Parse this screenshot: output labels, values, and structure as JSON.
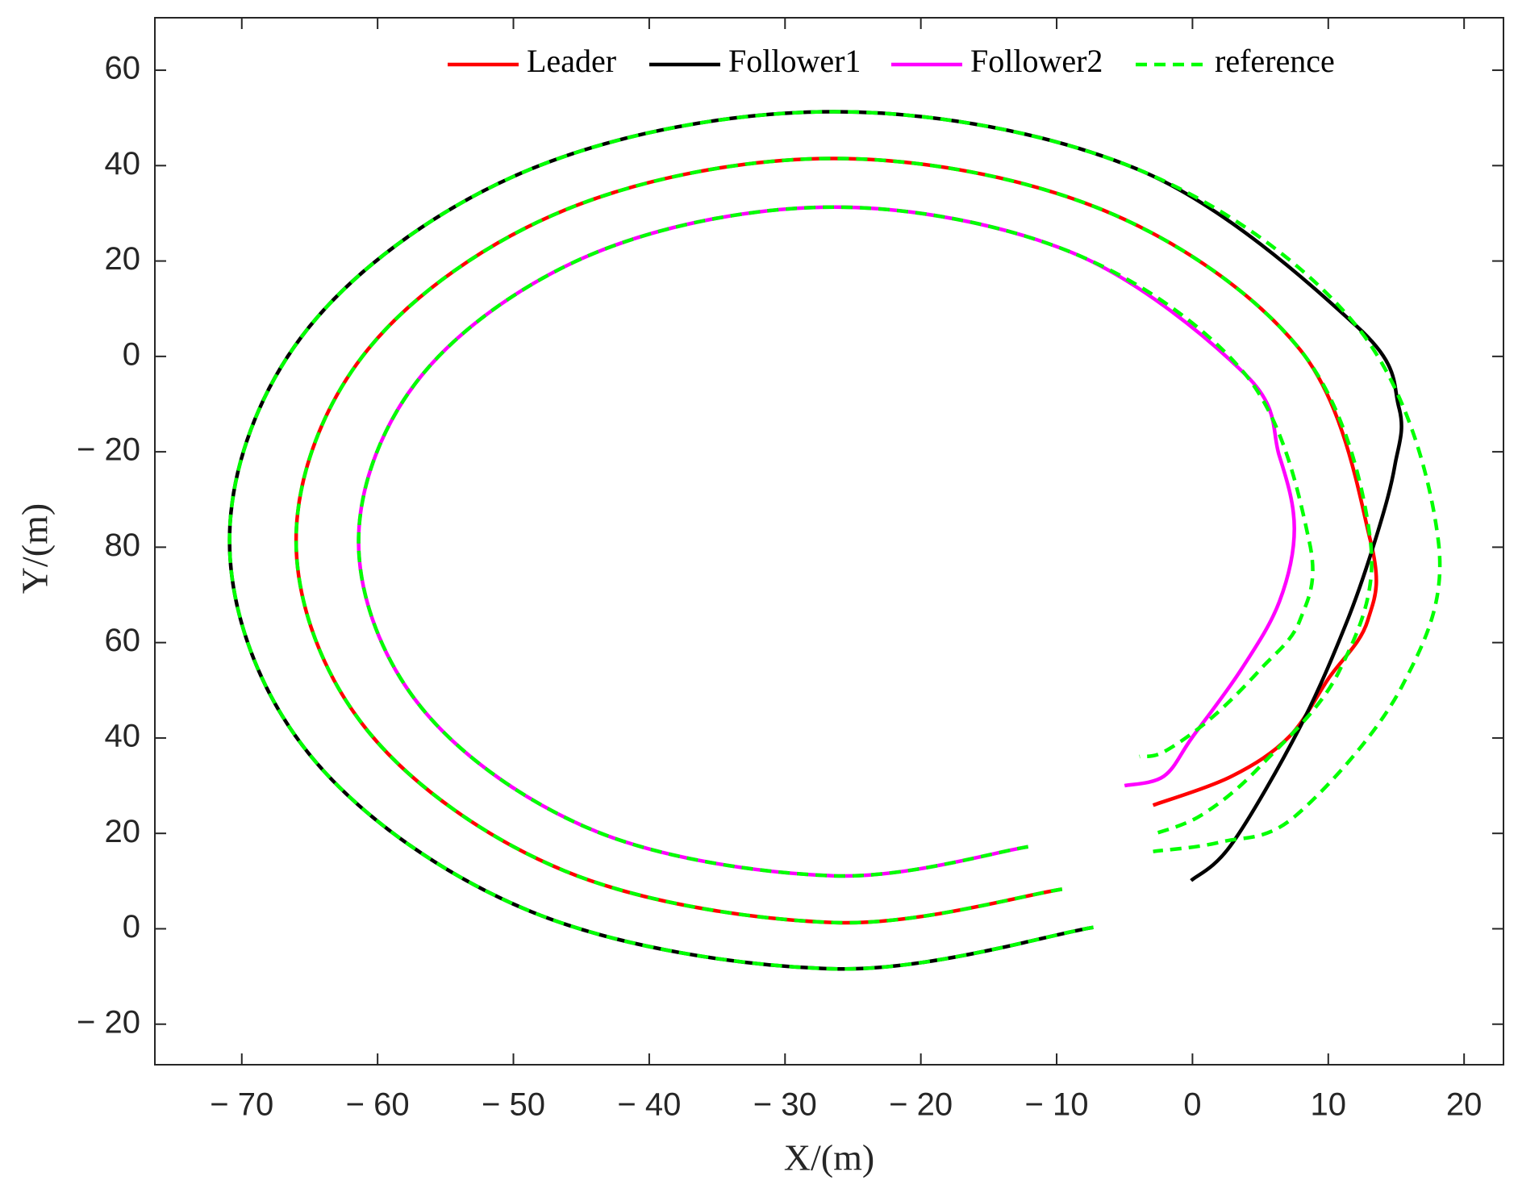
{
  "chart_data": {
    "type": "line",
    "x_label": "X/(m)",
    "y_label": "Y/(m)",
    "xlim": [
      -76.4,
      22.9
    ],
    "ylim": [
      -148.5,
      71
    ],
    "xticks": [
      {
        "value": -70,
        "label": "− 70"
      },
      {
        "value": -60,
        "label": "− 60"
      },
      {
        "value": -50,
        "label": "− 50"
      },
      {
        "value": -40,
        "label": "− 40"
      },
      {
        "value": -30,
        "label": "− 30"
      },
      {
        "value": -20,
        "label": "− 20"
      },
      {
        "value": -10,
        "label": "− 10"
      },
      0,
      10,
      20
    ],
    "yticks": [
      60,
      40,
      20,
      0,
      {
        "value": -20,
        "label": "− 20"
      },
      {
        "value": -40,
        "label": "80"
      },
      {
        "value": -60,
        "label": "60"
      },
      {
        "value": -80,
        "label": "40"
      },
      {
        "value": -100,
        "label": "20"
      },
      {
        "value": -120,
        "label": "0"
      },
      {
        "value": -140,
        "label": "− 20"
      }
    ],
    "legend_position": "top",
    "series": [
      {
        "name": "Leader",
        "color": "#ff0000",
        "line_style": "solid",
        "x": [
          -9.6,
          -26.4,
          -46.2,
          -60.7,
          -66.0,
          -60.7,
          -46.2,
          -26.4,
          -6.6,
          7.9,
          13.1,
          12.9,
          10.0,
          7.1,
          2.9,
          -2.9
        ],
        "values": [
          -111.7,
          -118.7,
          -107.9,
          -78.6,
          -38.6,
          1.5,
          30.7,
          41.5,
          30.7,
          1.5,
          -38.6,
          -55.4,
          -67.6,
          -79.8,
          -88.0,
          -94.1
        ]
      },
      {
        "name": "Follower1",
        "color": "#000000",
        "line_style": "solid",
        "x": [
          -7.3,
          -26.4,
          -48.7,
          -65.0,
          -70.9,
          -65.0,
          -48.7,
          -26.4,
          -4.1,
          12.1,
          15.2,
          14.9,
          13.6,
          11.4,
          7.9,
          2.9,
          -0.1
        ],
        "values": [
          -119.7,
          -128.4,
          -116.4,
          -83.5,
          -38.6,
          6.3,
          39.3,
          51.3,
          39.3,
          6.3,
          -10.7,
          -22.9,
          -37.2,
          -55.4,
          -77.8,
          -102.2,
          -109.9
        ]
      },
      {
        "name": "Follower2",
        "color": "#ff00ff",
        "line_style": "solid",
        "x": [
          -12.1,
          -26.4,
          -43.9,
          -56.7,
          -61.4,
          -56.7,
          -43.9,
          -26.4,
          -8.9,
          3.9,
          6.4,
          7.5,
          6.4,
          3.6,
          0,
          -2.1,
          -5.0
        ],
        "values": [
          -102.8,
          -108.9,
          -99.6,
          -73.9,
          -38.8,
          -3.8,
          21.8,
          31.3,
          21.8,
          -3.8,
          -20.9,
          -36.1,
          -51.4,
          -65.6,
          -79.8,
          -88.0,
          -90.0
        ]
      },
      {
        "name": "reference",
        "color": "#00ff00",
        "line_style": "dashed",
        "x": [
          -7.3,
          -26.4,
          -48.7,
          -65.0,
          -70.9,
          -65.0,
          -48.7,
          -26.4,
          -4.1,
          12.1,
          18.1,
          15.4,
          7.6,
          2.1,
          -2.9,
          null,
          -9.6,
          -26.4,
          -46.2,
          -60.7,
          -66.0,
          -60.7,
          -46.2,
          -26.4,
          -6.6,
          7.9,
          13.1,
          10.8,
          5.0,
          0.7,
          -2.9,
          null,
          -12.1,
          -26.4,
          -43.9,
          -56.7,
          -61.4,
          -56.7,
          -43.9,
          -26.4,
          -8.9,
          3.9,
          8.6,
          7.9,
          5.0,
          1.4,
          -2.1,
          -3.9
        ],
        "values": [
          -119.7,
          -128.4,
          -116.4,
          -83.5,
          -38.6,
          6.3,
          39.3,
          51.3,
          39.3,
          6.3,
          -38.6,
          -69.3,
          -96.3,
          -101.8,
          -103.8,
          null,
          -111.7,
          -118.7,
          -107.9,
          -78.6,
          -38.6,
          1.5,
          30.7,
          41.5,
          30.7,
          1.5,
          -38.6,
          -66.0,
          -85.9,
          -96.1,
          -100.2,
          null,
          -102.8,
          -108.9,
          -99.6,
          -73.9,
          -38.8,
          -3.8,
          21.8,
          31.3,
          21.8,
          -3.8,
          -38.8,
          -55.4,
          -65.6,
          -75.8,
          -82.9,
          -83.9
        ]
      }
    ]
  }
}
